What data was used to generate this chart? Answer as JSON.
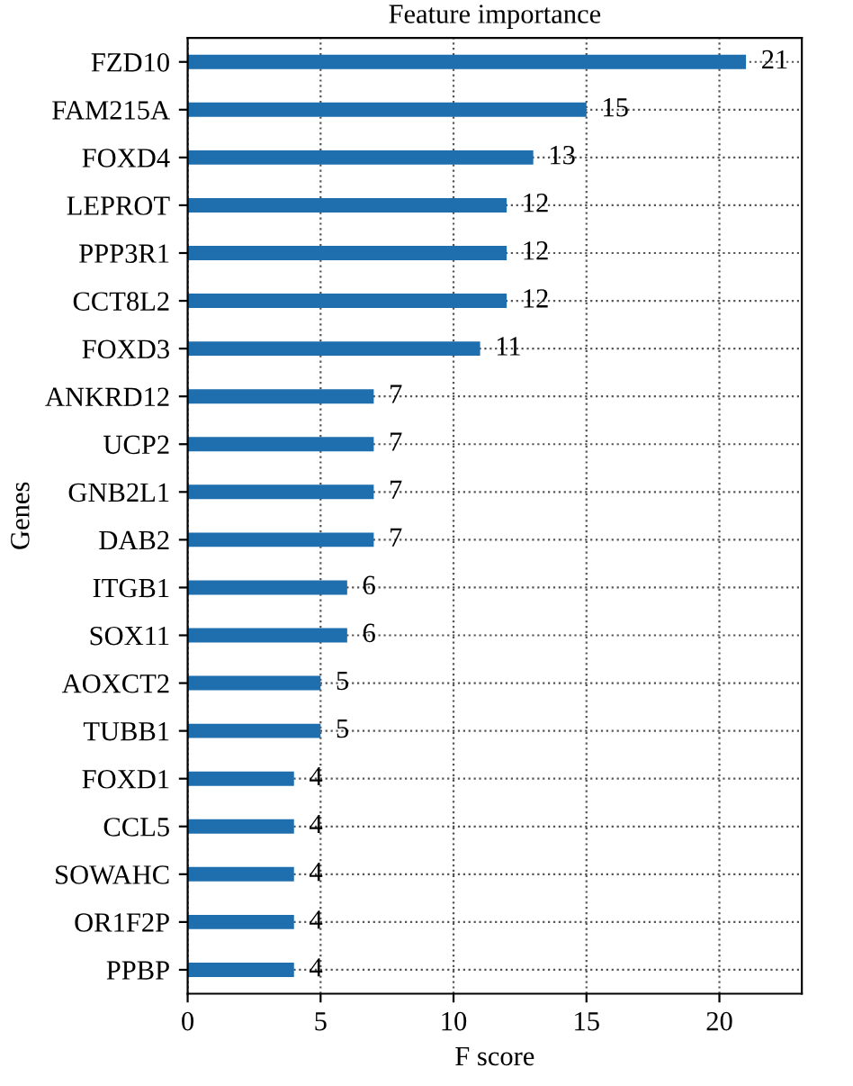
{
  "chart_data": {
    "type": "bar",
    "orientation": "horizontal",
    "title": "Feature importance",
    "xlabel": "F score",
    "ylabel": "Genes",
    "categories": [
      "FZD10",
      "FAM215A",
      "FOXD4",
      "LEPROT",
      "PPP3R1",
      "CCT8L2",
      "FOXD3",
      "ANKRD12",
      "UCP2",
      "GNB2L1",
      "DAB2",
      "ITGB1",
      "SOX11",
      "AOXCT2",
      "TUBB1",
      "FOXD1",
      "CCL5",
      "SOWAHC",
      "OR1F2P",
      "PPBP"
    ],
    "values": [
      21,
      15,
      13,
      12,
      12,
      12,
      11,
      7,
      7,
      7,
      7,
      6,
      6,
      5,
      5,
      4,
      4,
      4,
      4,
      4
    ],
    "color": "#1f6fae",
    "data_labels": true,
    "xlim": [
      0,
      23.1
    ],
    "xticks": [
      0,
      5,
      10,
      15,
      20
    ],
    "grid": true
  }
}
